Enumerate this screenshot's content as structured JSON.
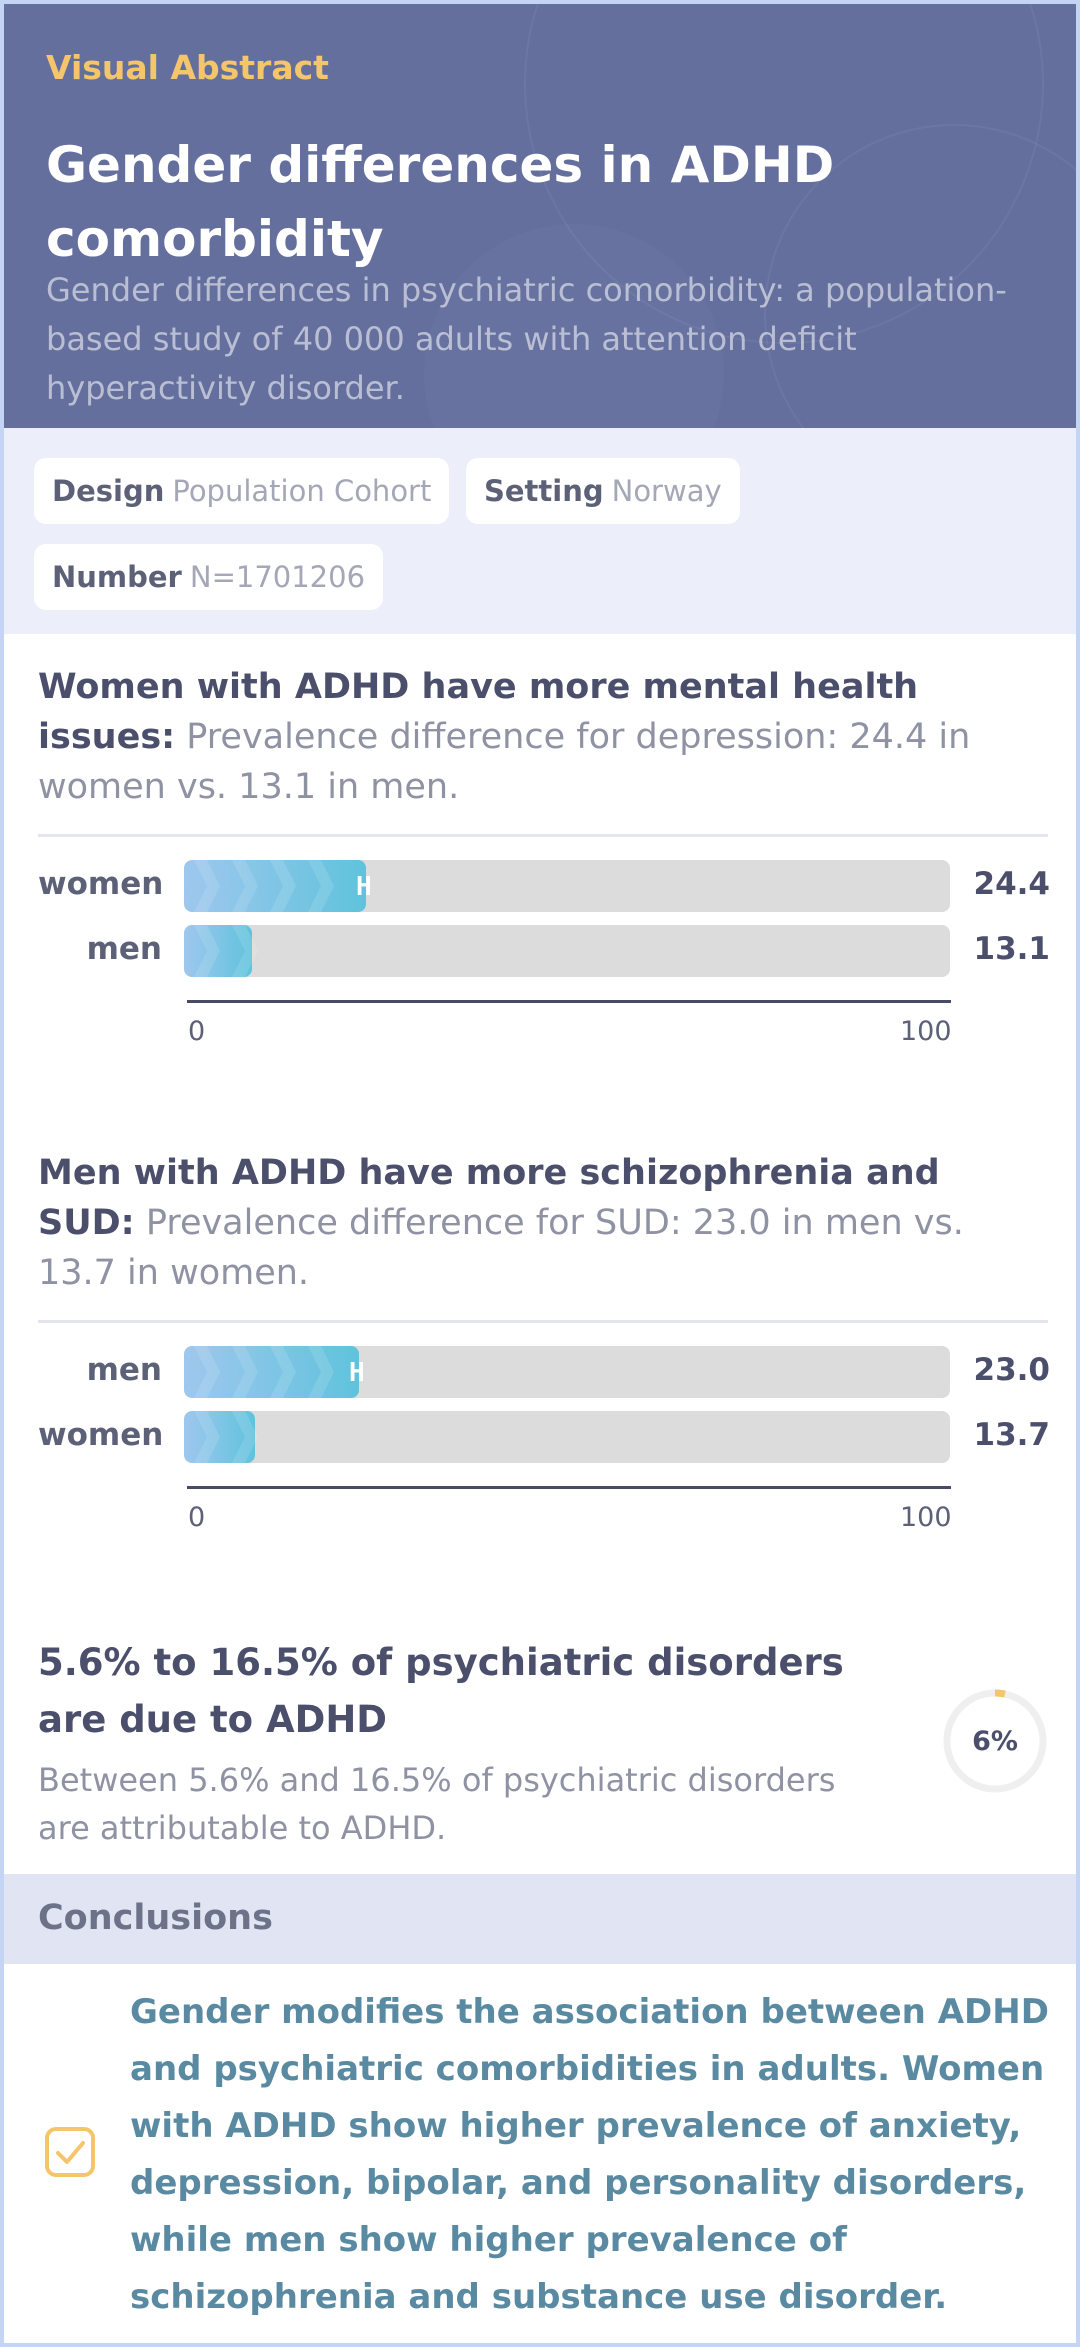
{
  "header": {
    "kicker": "Visual Abstract",
    "title": "Gender differences in ADHD comorbidity",
    "subtitle": "Gender differences in psychiatric comorbidity: a population-based study of 40 000 adults with attention deficit hyperactivity disorder."
  },
  "info": {
    "design_key": "Design",
    "design_value": "Population Cohort",
    "setting_key": "Setting",
    "setting_value": "Norway",
    "number_key": "Number",
    "number_value": "N=1701206"
  },
  "finding1": {
    "headline": "Women with ADHD have more mental health issues:",
    "description": "Prevalence difference for depression: 24.4 in women vs. 13.1 in men.",
    "axis_min": "0",
    "axis_max": "100",
    "marker": "H",
    "bars": [
      {
        "label": "women",
        "value": 24.4,
        "value_text": "24.4"
      },
      {
        "label": "men",
        "value": 13.1,
        "value_text": "13.1"
      }
    ]
  },
  "finding2": {
    "headline": "Men with ADHD have more schizophrenia and SUD:",
    "description": "Prevalence difference for SUD: 23.0 in men vs. 13.7 in women.",
    "axis_min": "0",
    "axis_max": "100",
    "marker": "H",
    "bars": [
      {
        "label": "men",
        "value": 23.0,
        "value_text": "23.0"
      },
      {
        "label": "women",
        "value": 13.7,
        "value_text": "13.7"
      }
    ]
  },
  "finding3": {
    "headline": "5.6% to 16.5% of psychiatric disorders are due to ADHD",
    "description": "Between 5.6% and 16.5% of psychiatric disorders are attributable to ADHD.",
    "gauge_value": 5.6,
    "gauge_label": "6%"
  },
  "conclusions": {
    "heading": "Conclusions",
    "text": "Gender modifies the association between ADHD and psychiatric comorbidities in adults. Women with ADHD show higher prevalence of anxiety, depression, bipolar, and personality disorders, while men show higher prevalence of schizophrenia and substance use disorder.",
    "icon": "checkbox-icon"
  },
  "colors": {
    "header_bg": "#646f9e",
    "accent": "#f4c56a",
    "bar_fill": "#5fc3dc",
    "conclusion_text": "#5a8aa1"
  }
}
